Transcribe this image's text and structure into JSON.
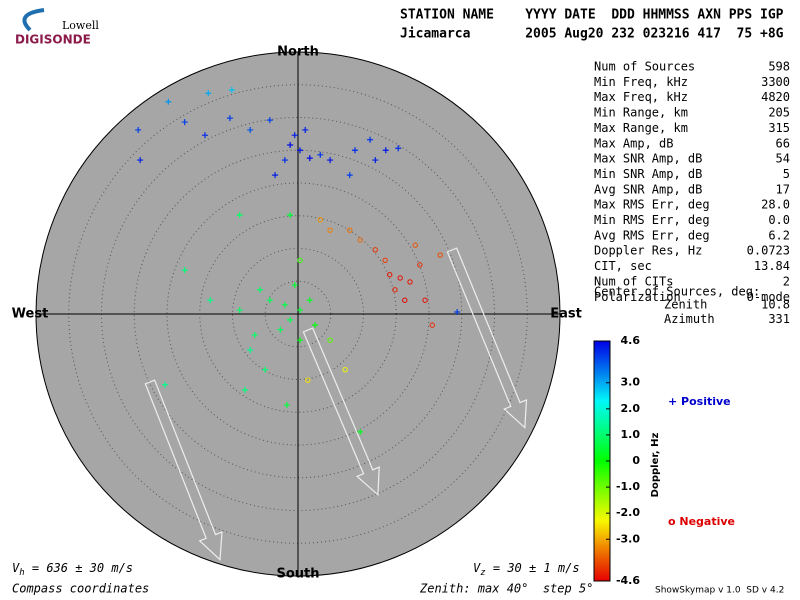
{
  "logo": {
    "top": "Lowell",
    "bottom": "DIGISONDE"
  },
  "header": {
    "labels": "STATION NAME    YYYY DATE  DDD HHMMSS AXN PPS IGP",
    "values": "Jicamarca       2005 Aug20 232 023216 417  75 +8G"
  },
  "directions": {
    "north": "North",
    "south": "South",
    "east": "East",
    "west": "West"
  },
  "stats": [
    [
      "Num of Sources",
      "598"
    ],
    [
      "Min Freq, kHz",
      "3300"
    ],
    [
      "Max Freq, kHz",
      "4820"
    ],
    [
      "Min Range, km",
      "205"
    ],
    [
      "Max Range, km",
      "315"
    ],
    [
      "Max Amp, dB",
      "66"
    ],
    [
      "Max SNR Amp, dB",
      "54"
    ],
    [
      "Min SNR Amp, dB",
      "5"
    ],
    [
      "Avg SNR Amp, dB",
      "17"
    ],
    [
      "Max RMS Err, deg",
      "28.0"
    ],
    [
      "Min RMS Err, deg",
      "0.0"
    ],
    [
      "Avg RMS Err, deg",
      "6.2"
    ],
    [
      "Doppler Res, Hz",
      "0.0723"
    ],
    [
      "CIT, sec",
      "13.84"
    ],
    [
      "Num of CITs",
      "2"
    ],
    [
      "Polarization",
      "O-mode"
    ]
  ],
  "center": {
    "title": "Center of Sources, deg:",
    "rows": [
      [
        "Zenith",
        "10.8"
      ],
      [
        "Azimuth",
        "331"
      ]
    ]
  },
  "colorbar": {
    "title": "Doppler, Hz",
    "lim": [
      -4.6,
      4.6
    ],
    "ticks": [
      4.6,
      {
        "value": 3,
        "label": "3.0"
      },
      {
        "value": 2,
        "label": "2.0"
      },
      {
        "value": 1,
        "label": "1.0"
      },
      0,
      {
        "value": -1,
        "label": "-1.0"
      },
      {
        "value": -2,
        "label": "-2.0"
      },
      {
        "value": -3,
        "label": "-3.0"
      },
      -4.6
    ]
  },
  "legend": {
    "positive": "Positive",
    "negative": "Negative"
  },
  "rings": {
    "max": 40,
    "step": 5
  },
  "footer": {
    "vh": {
      "symbol": "V",
      "sub": "h",
      "text": " = 636 ± 30 m/s"
    },
    "vz": {
      "symbol": "V",
      "sub": "z",
      "text": " = 30 ± 1 m/s"
    },
    "coords": "Compass coordinates",
    "zenith": "Zenith: max 40°  step 5°",
    "version": "ShowSkymap v 1.0  SD v 4.2"
  },
  "points": [
    [
      -0.5,
      27.3,
      4.3
    ],
    [
      0.3,
      25,
      4.4
    ],
    [
      -2,
      23.5,
      4.2
    ],
    [
      1.8,
      23.8,
      4.5
    ],
    [
      3.4,
      24.3,
      4.1
    ],
    [
      -3.5,
      21.2,
      4.3
    ],
    [
      4.9,
      23.5,
      4.4
    ],
    [
      -4.3,
      29.6,
      4.0
    ],
    [
      -1.2,
      25.8,
      4.5
    ],
    [
      8.7,
      25,
      4.2
    ],
    [
      11.8,
      23.5,
      4.3
    ],
    [
      13.4,
      25,
      4.4
    ],
    [
      11,
      26.6,
      4.1
    ],
    [
      15.3,
      25.3,
      4.2
    ],
    [
      7.9,
      21.2,
      4.0
    ],
    [
      1.1,
      28.1,
      4.3
    ],
    [
      -24.4,
      28.1,
      4.0
    ],
    [
      -17.3,
      29.3,
      4.0
    ],
    [
      -19.8,
      32.4,
      3.2
    ],
    [
      -13.7,
      33.7,
      3.0
    ],
    [
      -10.1,
      34.2,
      2.8
    ],
    [
      -10.4,
      29.9,
      4.0
    ],
    [
      -14.2,
      27.3,
      4.2
    ],
    [
      -24.1,
      23.5,
      4.3
    ],
    [
      -7.3,
      28.1,
      3.8
    ],
    [
      24.3,
      0.3,
      4.0
    ],
    [
      15.6,
      5.5,
      -4.5
    ],
    [
      17.1,
      4.9,
      -4.4
    ],
    [
      14.8,
      3.7,
      -4.3
    ],
    [
      18.6,
      7.5,
      -4.2
    ],
    [
      13.3,
      8.2,
      -4.0
    ],
    [
      21.7,
      9,
      -3.9
    ],
    [
      17.9,
      10.5,
      -3.8
    ],
    [
      9.5,
      11.3,
      -3.6
    ],
    [
      4.9,
      12.8,
      -3.4
    ],
    [
      3.4,
      14.4,
      -3.2
    ],
    [
      7.9,
      12.8,
      -3.5
    ],
    [
      11.8,
      9.8,
      -4.1
    ],
    [
      20.5,
      -1.7,
      -4.2
    ],
    [
      19.4,
      2.1,
      -4.5
    ],
    [
      16.3,
      2.1,
      -4.6
    ],
    [
      14,
      6,
      -4.4
    ],
    [
      -2,
      1.4,
      0.6
    ],
    [
      -4.3,
      2.1,
      0.8
    ],
    [
      0.3,
      0.6,
      0.5
    ],
    [
      -1.2,
      -0.9,
      0.7
    ],
    [
      -5.8,
      3.7,
      0.9
    ],
    [
      -8.9,
      0.6,
      0.9
    ],
    [
      1.8,
      2.1,
      0.3
    ],
    [
      -0.5,
      4.4,
      0.4
    ],
    [
      -2.7,
      -2.4,
      0.8
    ],
    [
      -7.3,
      -5.5,
      1.2
    ],
    [
      -5,
      -8.5,
      1.0
    ],
    [
      -8.1,
      -11.6,
      1.1
    ],
    [
      -13.4,
      2.1,
      1.2
    ],
    [
      -17.3,
      6.7,
      1.1
    ],
    [
      0.3,
      8.2,
      -0.5
    ],
    [
      -1.2,
      15.1,
      0.5
    ],
    [
      -8.9,
      15.1,
      0.9
    ],
    [
      4.9,
      -4,
      -0.8
    ],
    [
      7.2,
      -8.5,
      -2.2
    ],
    [
      1.5,
      -10.1,
      -2.5
    ],
    [
      -1.7,
      -13.9,
      0.5
    ],
    [
      -20.3,
      -10.8,
      1.2
    ],
    [
      9.5,
      -18,
      0.3
    ],
    [
      -6.6,
      -3.2,
      0.9
    ],
    [
      0.3,
      -4,
      0.2
    ],
    [
      2.6,
      -1.7,
      0.1
    ]
  ]
}
